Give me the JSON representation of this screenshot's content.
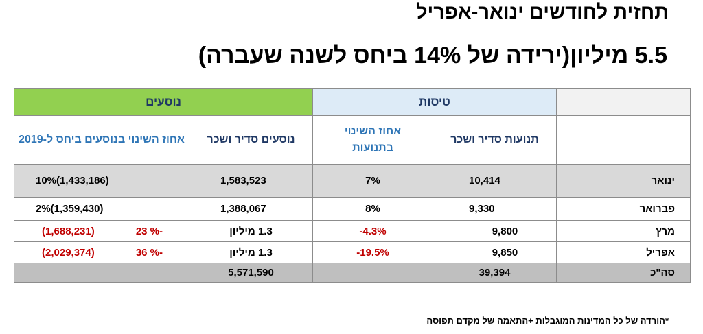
{
  "title": "תחזית  לחודשים ינואר-אפריל",
  "subtitle": "5.5 מיליון(ירידה של 14% ביחס לשנה שעברה)",
  "header": {
    "passengers_group": "נוסעים",
    "flights_group": "טיסות",
    "col_pass_change": "אחוז השינוי  בנוסעים ביחס ל-2019",
    "col_pass_volume": "נוסעים סדיר ושכר",
    "col_flight_change": "אחוז השינוי בתנועות",
    "col_flight_volume": "תנועות סדיר ושכר"
  },
  "rows": [
    {
      "month": "ינואר",
      "flight_volume": "10,414",
      "flight_change": "7%",
      "pass_volume": "1,583,523",
      "pass_change": "10%(1,433,186)"
    },
    {
      "month": "פברואר",
      "flight_volume": "9,330",
      "flight_change": "8%",
      "pass_volume": "1,388,067",
      "pass_change": "2%(1,359,430)"
    },
    {
      "month": "מרץ",
      "flight_volume": "9,800",
      "flight_change": "-4.3%",
      "pass_volume": "1.3 מיליון",
      "pass_change_pct": "23 %-",
      "pass_change_abs": "(1,688,231)"
    },
    {
      "month": "אפריל",
      "flight_volume": "9,850",
      "flight_change": "-19.5%",
      "pass_volume": "1.3 מיליון",
      "pass_change_pct": "36 %-",
      "pass_change_abs": "(2,029,374)"
    }
  ],
  "total": {
    "label": "סה\"כ",
    "flight_volume": "39,394",
    "pass_volume": "5,571,590"
  },
  "colors": {
    "passengers_header": "#92d050",
    "flights_header": "#ddebf7",
    "negative": "#c00000",
    "header_text": "#1f3864",
    "change_header_text": "#2e75b6"
  },
  "footnote": "*הורדה של כל המדינות המוגבלות +התאמה של מקדם תפוסה"
}
